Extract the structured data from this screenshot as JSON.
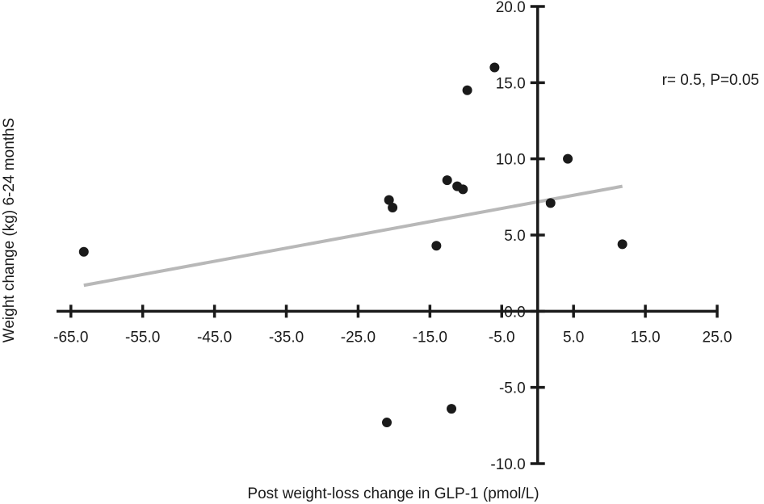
{
  "chart_data": {
    "type": "scatter",
    "title": "",
    "xlabel": "Post weight-loss change in GLP-1 (pmol/L)",
    "ylabel": "Weight change (kg) 6-24 monthS",
    "xlim": [
      -67.0,
      25.0
    ],
    "ylim": [
      -10.0,
      20.0
    ],
    "x_ticks": [
      -65.0,
      -55.0,
      -45.0,
      -35.0,
      -25.0,
      -15.0,
      -5.0,
      5.0,
      15.0,
      25.0
    ],
    "y_ticks": [
      -10.0,
      -5.0,
      0.0,
      5.0,
      10.0,
      15.0,
      20.0
    ],
    "x_tick_labels": [
      "-65.0",
      "-55.0",
      "-45.0",
      "-35.0",
      "-25.0",
      "-15.0",
      "-5.0",
      "5.0",
      "15.0",
      "25.0"
    ],
    "y_tick_labels": [
      "-10.0",
      "-5.0",
      "0.0",
      "5.0",
      "10.0",
      "15.0",
      "20.0"
    ],
    "grid": false,
    "legend": "none",
    "series": [
      {
        "points": [
          {
            "x": -63.2,
            "y": 3.9
          },
          {
            "x": -20.7,
            "y": 7.3
          },
          {
            "x": -20.2,
            "y": 6.8
          },
          {
            "x": -21.0,
            "y": -7.3
          },
          {
            "x": -14.1,
            "y": 4.3
          },
          {
            "x": -12.6,
            "y": 8.6
          },
          {
            "x": -11.2,
            "y": 8.2
          },
          {
            "x": -10.4,
            "y": 8.0
          },
          {
            "x": -12.0,
            "y": -6.4
          },
          {
            "x": -9.8,
            "y": 14.5
          },
          {
            "x": -6.0,
            "y": 16.0
          },
          {
            "x": 1.8,
            "y": 7.1
          },
          {
            "x": 4.2,
            "y": 10.0
          },
          {
            "x": 11.8,
            "y": 4.4
          }
        ]
      }
    ],
    "trendline": {
      "x": [
        -63.2,
        11.8
      ],
      "y": [
        1.7,
        8.2
      ]
    },
    "annotation": "r= 0.5, P=0.05",
    "colors": {
      "points": "#1a1a1a",
      "axes": "#1a1a1a",
      "trendline": "#b8b8b8"
    }
  }
}
